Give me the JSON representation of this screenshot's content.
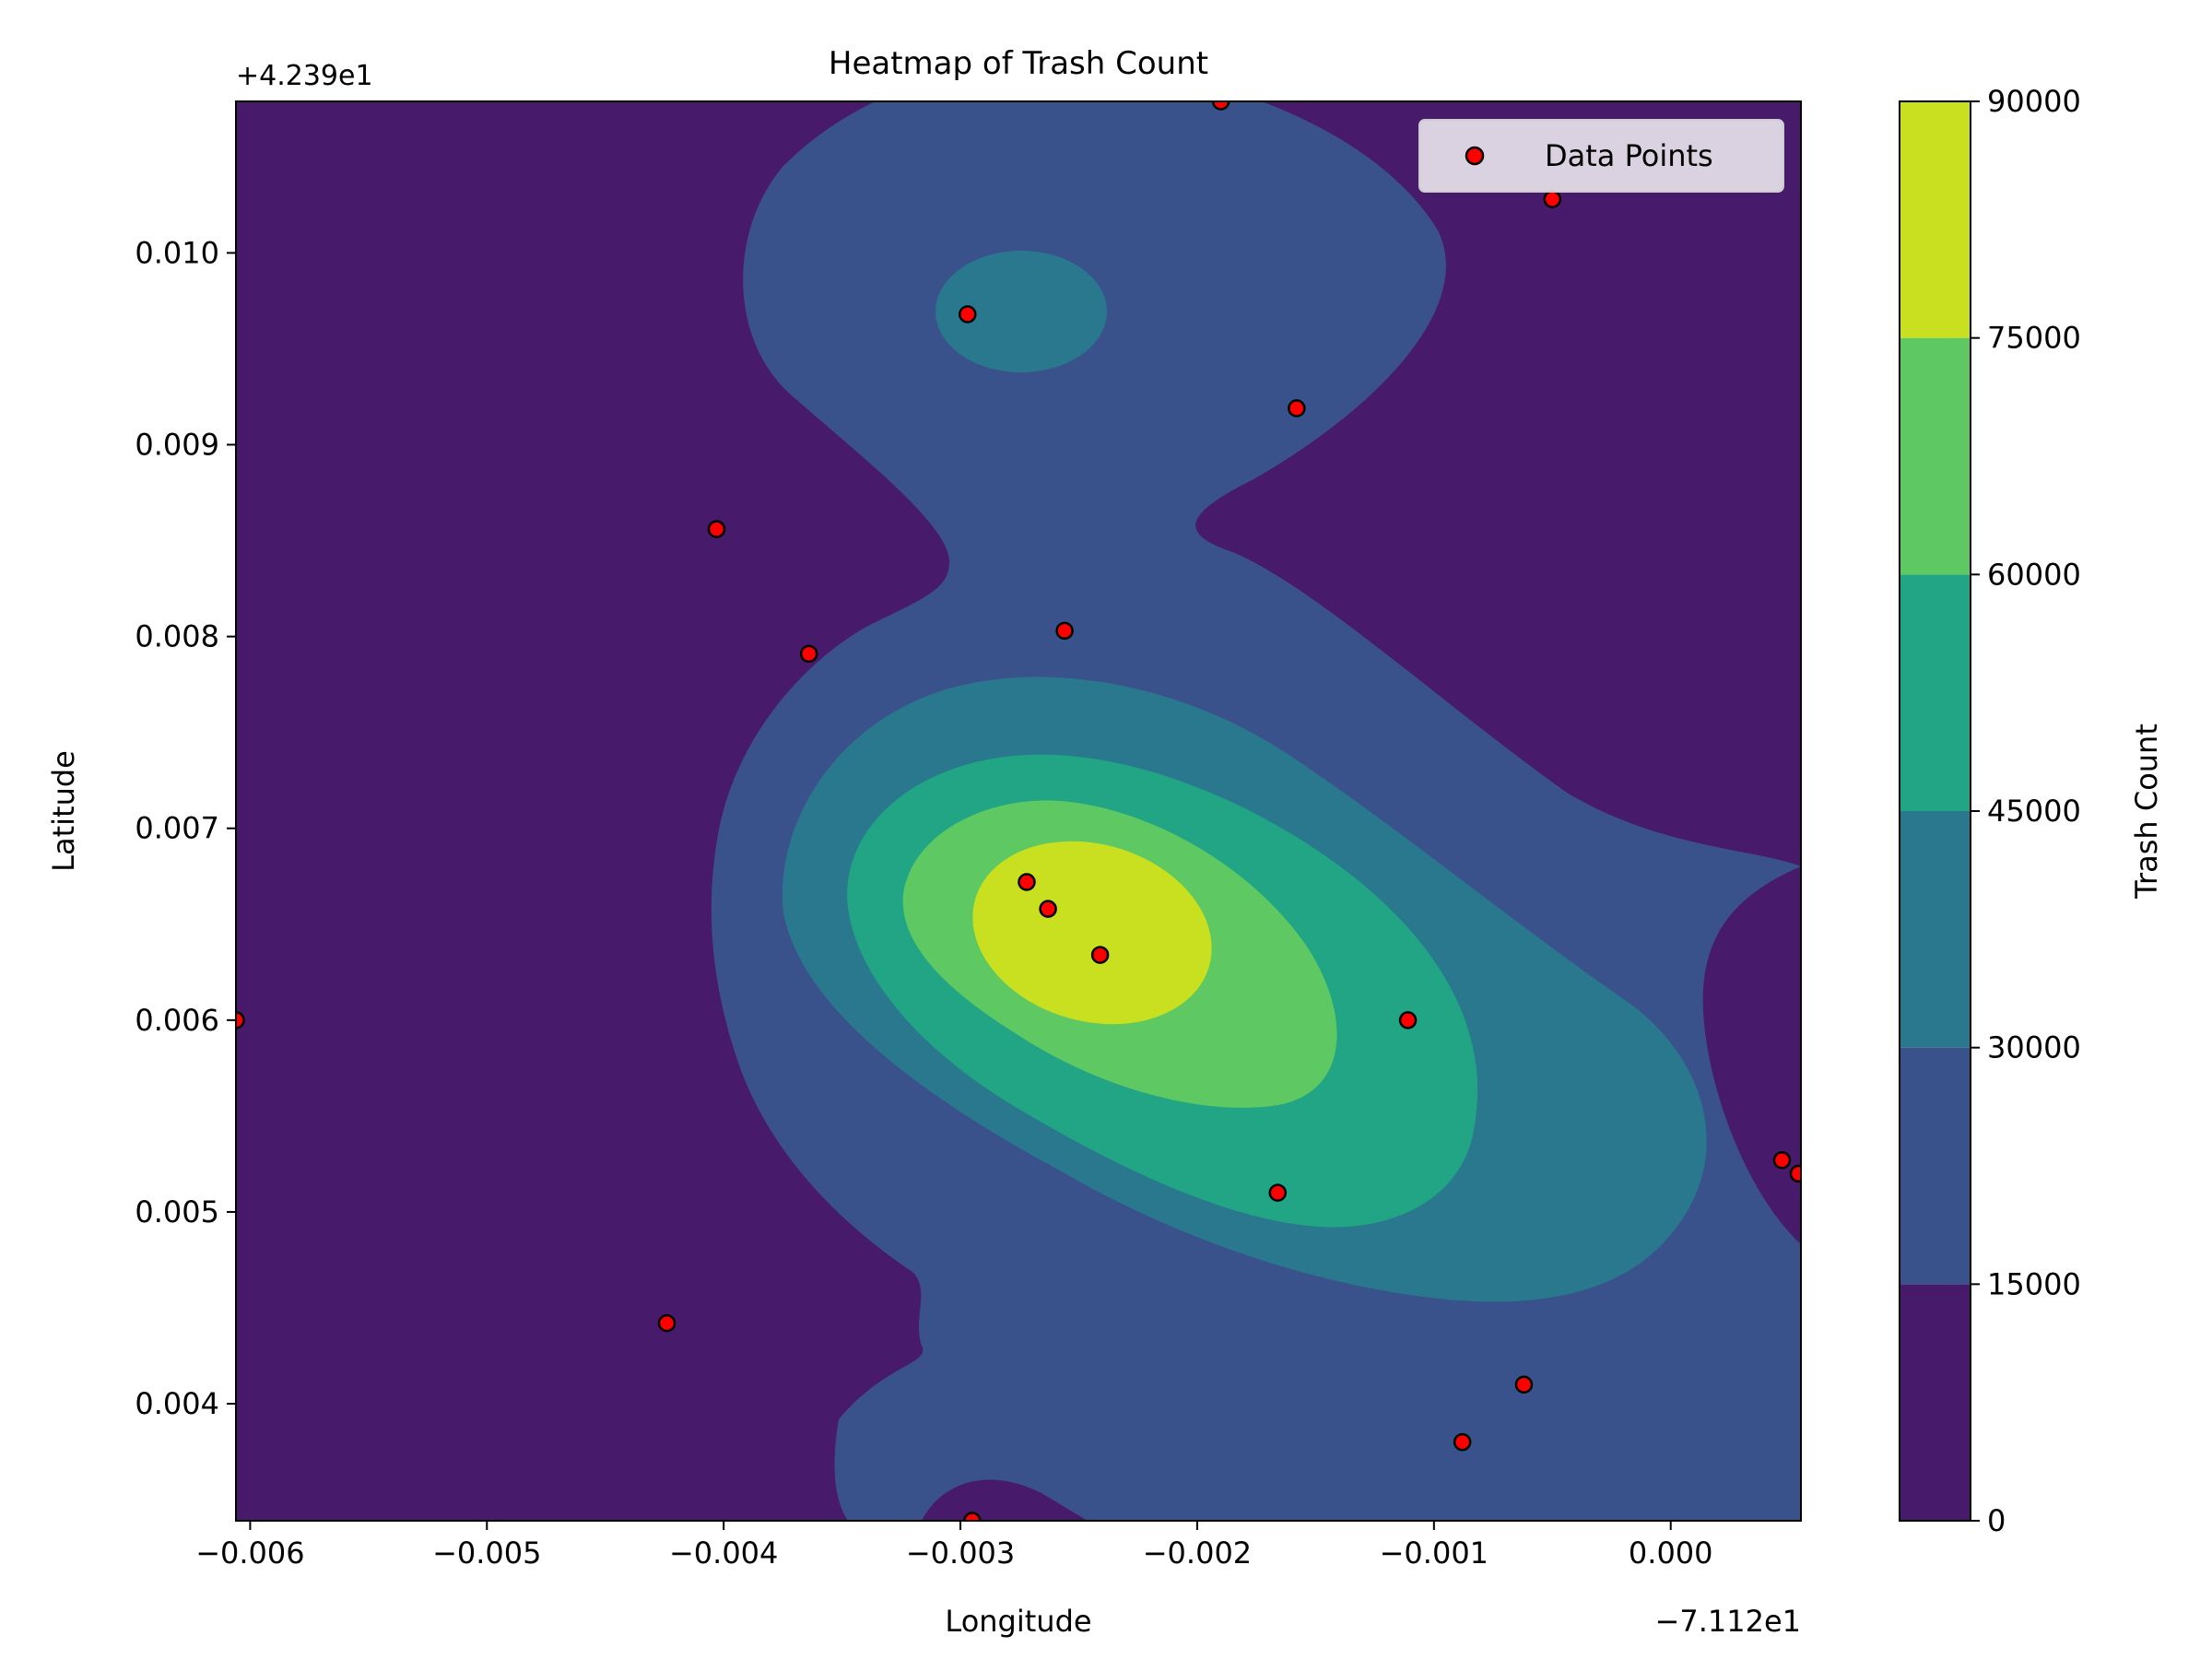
{
  "chart_data": {
    "type": "heatmap",
    "title": "Heatmap of Trash Count",
    "xlabel": "Longitude",
    "ylabel": "Latitude",
    "x_offset_label": "−7.112e1",
    "y_offset_label": "+4.239e1",
    "xlim": [
      -0.00606,
      0.00055
    ],
    "ylim": [
      0.00339,
      0.01079
    ],
    "x_ticks": [
      -0.006,
      -0.005,
      -0.004,
      -0.003,
      -0.002,
      -0.001,
      0.0
    ],
    "x_tick_labels": [
      "−0.006",
      "−0.005",
      "−0.004",
      "−0.003",
      "−0.002",
      "−0.001",
      "0.000"
    ],
    "y_ticks": [
      0.004,
      0.005,
      0.006,
      0.007,
      0.008,
      0.009,
      0.01
    ],
    "y_tick_labels": [
      "0.004",
      "0.005",
      "0.006",
      "0.007",
      "0.008",
      "0.009",
      "0.010"
    ],
    "colorbar": {
      "label": "Trash Count",
      "levels": [
        0,
        15000,
        30000,
        45000,
        60000,
        75000,
        90000
      ],
      "level_labels": [
        "0",
        "15000",
        "30000",
        "45000",
        "60000",
        "75000",
        "90000"
      ],
      "colors": [
        "#481a6c",
        "#3a528b",
        "#2a788e",
        "#21a585",
        "#5ec962",
        "#c8e020"
      ]
    },
    "legend": {
      "label": "Data Points",
      "position": "top-right"
    },
    "points": [
      {
        "x": -0.00297,
        "y": 0.00968
      },
      {
        "x": -0.00158,
        "y": 0.00919
      },
      {
        "x": -0.00403,
        "y": 0.00856
      },
      {
        "x": -0.00364,
        "y": 0.00791
      },
      {
        "x": -0.00256,
        "y": 0.00803
      },
      {
        "x": -0.00272,
        "y": 0.00672
      },
      {
        "x": -0.00263,
        "y": 0.00658
      },
      {
        "x": -0.00241,
        "y": 0.00634
      },
      {
        "x": -0.00111,
        "y": 0.006
      },
      {
        "x": -0.00166,
        "y": 0.0051
      },
      {
        "x": -0.00606,
        "y": 0.006
      },
      {
        "x": -0.00424,
        "y": 0.00442
      },
      {
        "x": -0.00062,
        "y": 0.0041
      },
      {
        "x": -0.00088,
        "y": 0.0038
      },
      {
        "x": -0.00295,
        "y": 0.00339
      },
      {
        "x": -0.0019,
        "y": 0.01079
      },
      {
        "x": -0.0005,
        "y": 0.01028
      },
      {
        "x": 0.00047,
        "y": 0.00527
      },
      {
        "x": 0.00054,
        "y": 0.0052
      }
    ],
    "point_style": {
      "fill": "#ff0000",
      "edge": "#000000"
    }
  }
}
